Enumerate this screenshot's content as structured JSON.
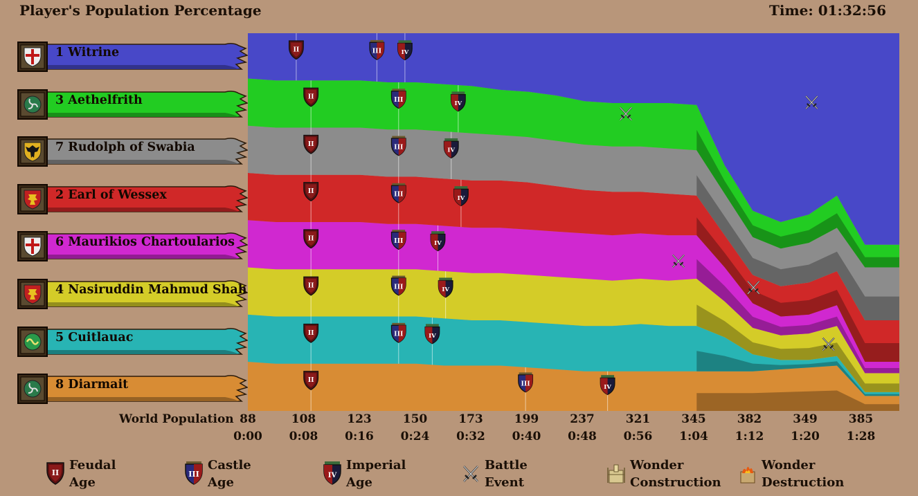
{
  "header": {
    "title": "Player's Population Percentage",
    "time": "Time: 01:32:56"
  },
  "players": [
    {
      "name": "1 Witrine",
      "color": "#4848c8",
      "crest": "cross"
    },
    {
      "name": "3 Aethelfrith",
      "color": "#22cc22",
      "crest": "triskele"
    },
    {
      "name": "7 Rudolph of Swabia",
      "color": "#8c8c8c",
      "crest": "eagle"
    },
    {
      "name": "2 Earl of Wessex",
      "color": "#d02828",
      "crest": "lion"
    },
    {
      "name": "6 Maurikios Chartoularios",
      "color": "#d028d0",
      "crest": "cross"
    },
    {
      "name": "4 Nasiruddin Mahmud Shah",
      "color": "#d4cc28",
      "crest": "lion"
    },
    {
      "name": "5 Cuitlauac",
      "color": "#28b4b4",
      "crest": "serpent"
    },
    {
      "name": "8 Diarmait",
      "color": "#d88c34",
      "crest": "triskele"
    }
  ],
  "axis": {
    "world_population_label": "World Population",
    "ticks": [
      {
        "pop": "88",
        "time": "0:00"
      },
      {
        "pop": "108",
        "time": "0:08"
      },
      {
        "pop": "123",
        "time": "0:16"
      },
      {
        "pop": "150",
        "time": "0:24"
      },
      {
        "pop": "173",
        "time": "0:32"
      },
      {
        "pop": "199",
        "time": "0:40"
      },
      {
        "pop": "237",
        "time": "0:48"
      },
      {
        "pop": "321",
        "time": "0:56"
      },
      {
        "pop": "345",
        "time": "1:04"
      },
      {
        "pop": "382",
        "time": "1:12"
      },
      {
        "pop": "349",
        "time": "1:20"
      },
      {
        "pop": "385",
        "time": "1:28"
      }
    ]
  },
  "legend": {
    "feudal": "Feudal\nAge",
    "castle": "Castle\nAge",
    "imperial": "Imperial\nAge",
    "battle": "Battle\nEvent",
    "wonder_construction": "Wonder\nConstruction",
    "wonder_destruction": "Wonder\nDestruction"
  },
  "chart_data": {
    "type": "area",
    "stacked": true,
    "title": "Player's Population Percentage",
    "x": [
      0,
      4,
      8,
      12,
      16,
      20,
      24,
      28,
      32,
      36,
      40,
      44,
      48,
      52,
      56,
      60,
      64,
      68,
      72,
      76,
      80,
      84,
      88,
      92.9
    ],
    "x_unit": "minutes",
    "ylim": [
      0,
      100
    ],
    "series": [
      {
        "name": "8 Diarmait",
        "values": [
          13,
          12.5,
          12.5,
          12.5,
          12.5,
          12.5,
          12.5,
          12,
          12,
          12,
          11.5,
          11,
          10.5,
          10.5,
          10.5,
          10.5,
          10.5,
          10.5,
          10.5,
          11,
          11.5,
          12,
          4,
          4
        ]
      },
      {
        "name": "5 Cuitlauac",
        "values": [
          12.5,
          12.5,
          12.5,
          12.5,
          12.5,
          12.5,
          12.5,
          12.5,
          12,
          12,
          12,
          12,
          12,
          12,
          12.5,
          12,
          12,
          9,
          4.5,
          2.5,
          2,
          2.5,
          1,
          1
        ]
      },
      {
        "name": "4 Nasiruddin Mahmud Shah",
        "values": [
          12.5,
          12.5,
          12.5,
          12.5,
          12.5,
          12.5,
          12.5,
          12.5,
          12.5,
          12.5,
          12.5,
          12.5,
          12.5,
          12,
          12,
          12,
          12.5,
          9.5,
          7,
          6.5,
          7,
          8,
          5,
          5
        ]
      },
      {
        "name": "6 Maurikios Chartoularios",
        "values": [
          12.5,
          12.5,
          12.5,
          12.5,
          12.5,
          12,
          12,
          12,
          12,
          12,
          12,
          12,
          12,
          12,
          12,
          12,
          11.5,
          9,
          6.5,
          5,
          5,
          5.5,
          3,
          3
        ]
      },
      {
        "name": "2 Earl of Wessex",
        "values": [
          12.5,
          12.5,
          12.5,
          12.5,
          12.5,
          12.5,
          12.5,
          12.5,
          12.5,
          12.5,
          12.5,
          12,
          11.5,
          11.5,
          11,
          11,
          10.5,
          8.5,
          7.5,
          8,
          8.5,
          9,
          11,
          11
        ]
      },
      {
        "name": "7 Rudolph of Swabia",
        "values": [
          12.5,
          12.5,
          12.5,
          12.5,
          12.5,
          12.5,
          12.5,
          12.5,
          12.5,
          12,
          12,
          12,
          12,
          12,
          12,
          12,
          12,
          11,
          10,
          10,
          10.5,
          11.5,
          14,
          14
        ]
      },
      {
        "name": "3 Aethelfrith",
        "values": [
          12.5,
          12.5,
          12.5,
          12.5,
          12.5,
          12.5,
          12.5,
          12.5,
          12.5,
          12,
          12,
          12,
          11.5,
          11.5,
          11.5,
          12,
          12,
          7.5,
          7,
          7,
          7.5,
          8.5,
          6,
          6
        ]
      },
      {
        "name": "1 Witrine",
        "values": [
          12,
          12.5,
          12.5,
          12.5,
          12.5,
          13,
          13,
          13.5,
          14,
          15,
          15.5,
          16.5,
          18,
          18.5,
          18.5,
          18.5,
          19,
          35,
          47,
          50,
          48,
          43,
          56,
          56
        ]
      }
    ],
    "age_events": [
      {
        "series": "1 Witrine",
        "age": "feudal",
        "time": 6.9
      },
      {
        "series": "1 Witrine",
        "age": "castle",
        "time": 18.4
      },
      {
        "series": "1 Witrine",
        "age": "imperial",
        "time": 22.4
      },
      {
        "series": "3 Aethelfrith",
        "age": "feudal",
        "time": 9.0
      },
      {
        "series": "3 Aethelfrith",
        "age": "castle",
        "time": 21.5
      },
      {
        "series": "3 Aethelfrith",
        "age": "imperial",
        "time": 30.0
      },
      {
        "series": "7 Rudolph of Swabia",
        "age": "feudal",
        "time": 9.0
      },
      {
        "series": "7 Rudolph of Swabia",
        "age": "castle",
        "time": 21.5
      },
      {
        "series": "7 Rudolph of Swabia",
        "age": "imperial",
        "time": 29.0
      },
      {
        "series": "2 Earl of Wessex",
        "age": "feudal",
        "time": 9.0
      },
      {
        "series": "2 Earl of Wessex",
        "age": "castle",
        "time": 21.5
      },
      {
        "series": "2 Earl of Wessex",
        "age": "imperial",
        "time": 30.4
      },
      {
        "series": "6 Maurikios Chartoularios",
        "age": "feudal",
        "time": 9.0
      },
      {
        "series": "6 Maurikios Chartoularios",
        "age": "castle",
        "time": 21.5
      },
      {
        "series": "6 Maurikios Chartoularios",
        "age": "imperial",
        "time": 27.1
      },
      {
        "series": "4 Nasiruddin Mahmud Shah",
        "age": "feudal",
        "time": 9.0
      },
      {
        "series": "4 Nasiruddin Mahmud Shah",
        "age": "castle",
        "time": 21.5
      },
      {
        "series": "4 Nasiruddin Mahmud Shah",
        "age": "imperial",
        "time": 28.2
      },
      {
        "series": "5 Cuitlauac",
        "age": "feudal",
        "time": 9.0
      },
      {
        "series": "5 Cuitlauac",
        "age": "castle",
        "time": 21.5
      },
      {
        "series": "5 Cuitlauac",
        "age": "imperial",
        "time": 26.3
      },
      {
        "series": "8 Diarmait",
        "age": "feudal",
        "time": 9.0
      },
      {
        "series": "8 Diarmait",
        "age": "castle",
        "time": 39.6
      },
      {
        "series": "8 Diarmait",
        "age": "imperial",
        "time": 51.3
      }
    ],
    "battle_events": [
      {
        "time": 53.9,
        "level": 79
      },
      {
        "time": 80.4,
        "level": 82
      },
      {
        "time": 72.1,
        "level": 33
      },
      {
        "time": 82.8,
        "level": 18
      },
      {
        "time": 61.4,
        "level": 40
      }
    ]
  }
}
